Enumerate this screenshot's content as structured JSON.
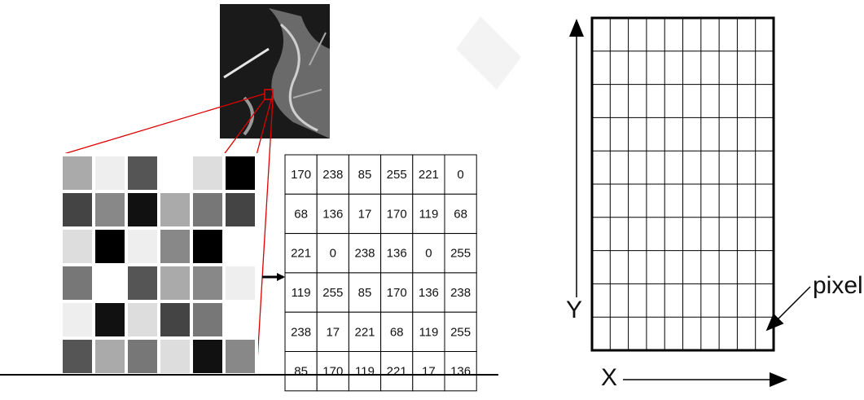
{
  "table": {
    "rows": [
      [
        170,
        238,
        85,
        255,
        221,
        0
      ],
      [
        68,
        136,
        17,
        170,
        119,
        68
      ],
      [
        221,
        0,
        238,
        136,
        0,
        255
      ],
      [
        119,
        255,
        85,
        170,
        136,
        238
      ],
      [
        238,
        17,
        221,
        68,
        119,
        255
      ],
      [
        85,
        170,
        119,
        221,
        17,
        136
      ]
    ]
  },
  "labels": {
    "y_axis": "Y",
    "x_axis": "X",
    "pixel": "pixel"
  }
}
